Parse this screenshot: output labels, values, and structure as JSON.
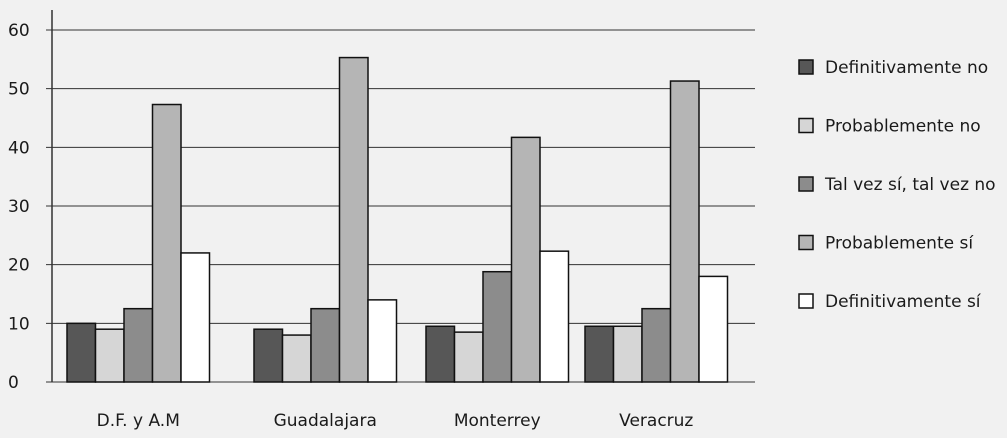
{
  "chart_data": {
    "type": "bar",
    "categories": [
      "D.F. y A.M",
      "Guadalajara",
      "Monterrey",
      "Veracruz"
    ],
    "series": [
      {
        "name": "Definitivamente no",
        "color": "#575757",
        "values": [
          10,
          9,
          9.5,
          9.5
        ]
      },
      {
        "name": "Probablemente no",
        "color": "#d6d6d6",
        "values": [
          9,
          8,
          8.5,
          9.5
        ]
      },
      {
        "name": "Tal vez sí, tal vez no",
        "color": "#8c8c8c",
        "values": [
          12.5,
          12.5,
          18.8,
          12.5
        ]
      },
      {
        "name": "Probablemente sí",
        "color": "#b5b5b5",
        "values": [
          47.3,
          55.3,
          41.7,
          51.3
        ]
      },
      {
        "name": "Definitivamente sí",
        "color": "#ffffff",
        "values": [
          22,
          14,
          22.3,
          18
        ]
      }
    ],
    "yticks": [
      0,
      10,
      20,
      30,
      40,
      50,
      60
    ],
    "ylim": [
      0,
      60
    ],
    "grid": true,
    "legend": "right"
  }
}
